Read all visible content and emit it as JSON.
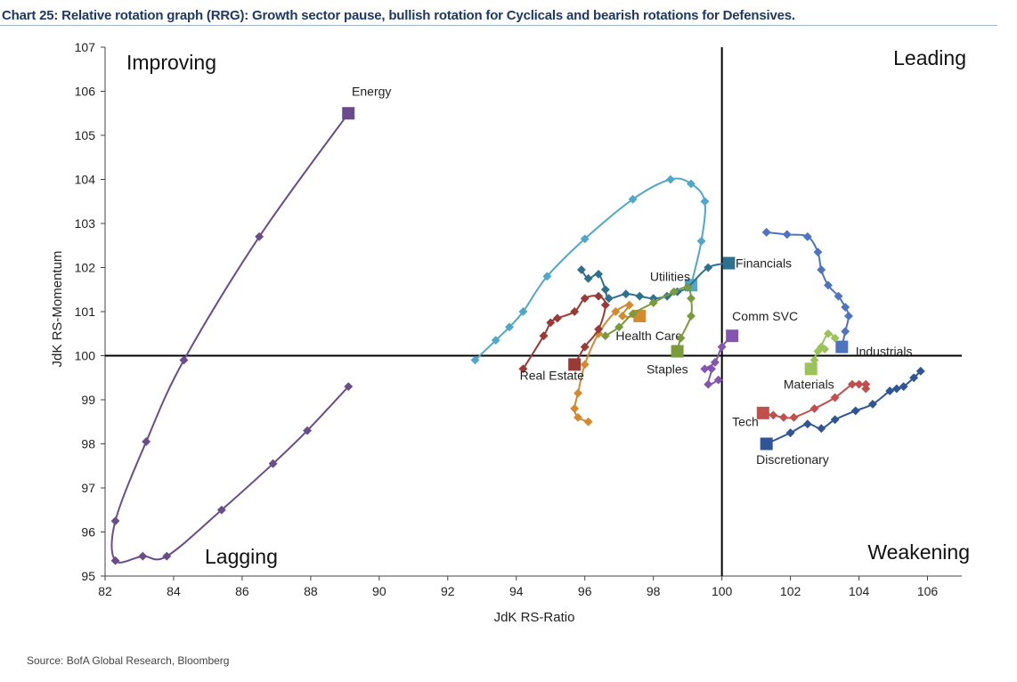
{
  "title": "Chart 25: Relative rotation graph (RRG): Growth sector pause, bullish rotation for Cyclicals and bearish rotations for Defensives.",
  "source": "Source: BofA Global Research, Bloomberg",
  "chart_data": {
    "type": "scatter",
    "xlabel": "JdK RS-Ratio",
    "ylabel": "JdK RS-Momentum",
    "xlim": [
      82,
      107
    ],
    "ylim": [
      95,
      107
    ],
    "x_ticks": [
      82,
      84,
      86,
      88,
      90,
      92,
      94,
      96,
      98,
      100,
      102,
      104,
      106
    ],
    "y_ticks": [
      95,
      96,
      97,
      98,
      99,
      100,
      101,
      102,
      103,
      104,
      105,
      106,
      107
    ],
    "crosshair": {
      "x": 100,
      "y": 100
    },
    "grid": false,
    "quadrants": {
      "top_left": "Improving",
      "top_right": "Leading",
      "bottom_left": "Lagging",
      "bottom_right": "Weakening"
    },
    "series": [
      {
        "name": "Energy",
        "color": "#6b4c8a",
        "label_anchor": [
          89.2,
          105.9
        ],
        "points": [
          [
            89.1,
            99.3
          ],
          [
            87.9,
            98.3
          ],
          [
            86.9,
            97.55
          ],
          [
            85.4,
            96.5
          ],
          [
            83.8,
            95.45
          ],
          [
            83.1,
            95.45
          ],
          [
            82.3,
            95.35
          ],
          [
            82.3,
            96.25
          ],
          [
            83.2,
            98.05
          ],
          [
            84.3,
            99.9
          ],
          [
            86.5,
            102.7
          ],
          [
            89.1,
            105.5
          ]
        ]
      },
      {
        "name": "Utilities",
        "color": "#4fa8c8",
        "label_anchor": [
          97.9,
          101.7
        ],
        "points": [
          [
            92.8,
            99.9
          ],
          [
            93.4,
            100.35
          ],
          [
            93.8,
            100.65
          ],
          [
            94.2,
            101.0
          ],
          [
            94.9,
            101.8
          ],
          [
            96.0,
            102.65
          ],
          [
            97.4,
            103.55
          ],
          [
            98.5,
            104.0
          ],
          [
            99.1,
            103.9
          ],
          [
            99.5,
            103.5
          ],
          [
            99.4,
            102.6
          ],
          [
            99.1,
            101.6
          ]
        ]
      },
      {
        "name": "Financials",
        "color": "#2e7090",
        "label_anchor": [
          100.4,
          102.0
        ],
        "points": [
          [
            95.9,
            101.95
          ],
          [
            96.1,
            101.75
          ],
          [
            96.4,
            101.85
          ],
          [
            96.6,
            101.5
          ],
          [
            96.7,
            101.3
          ],
          [
            97.2,
            101.4
          ],
          [
            97.6,
            101.35
          ],
          [
            98.0,
            101.3
          ],
          [
            98.4,
            101.35
          ],
          [
            98.7,
            101.45
          ],
          [
            99.0,
            101.55
          ],
          [
            99.6,
            102.0
          ],
          [
            100.2,
            102.1
          ]
        ]
      },
      {
        "name": "Comm SVC",
        "color": "#8455b0",
        "label_anchor": [
          100.3,
          100.8
        ],
        "points": [
          [
            99.9,
            99.45
          ],
          [
            99.6,
            99.35
          ],
          [
            99.7,
            99.7
          ],
          [
            99.5,
            99.7
          ],
          [
            99.8,
            99.85
          ],
          [
            100.0,
            100.2
          ],
          [
            100.3,
            100.45
          ]
        ]
      },
      {
        "name": "Health Care",
        "color": "#d4892e",
        "label_anchor": [
          96.9,
          100.35
        ],
        "points": [
          [
            96.1,
            98.5
          ],
          [
            95.8,
            98.6
          ],
          [
            95.7,
            98.8
          ],
          [
            95.8,
            99.15
          ],
          [
            96.0,
            99.8
          ],
          [
            96.4,
            100.5
          ],
          [
            96.9,
            101.0
          ],
          [
            97.3,
            101.15
          ],
          [
            97.1,
            100.9
          ],
          [
            97.6,
            100.9
          ]
        ]
      },
      {
        "name": "Real Estate",
        "color": "#9b3a34",
        "label_anchor": [
          94.1,
          99.45
        ],
        "points": [
          [
            94.2,
            99.7
          ],
          [
            94.8,
            100.45
          ],
          [
            95.0,
            100.75
          ],
          [
            95.2,
            100.85
          ],
          [
            95.7,
            101.0
          ],
          [
            96.0,
            101.3
          ],
          [
            96.4,
            101.35
          ],
          [
            96.6,
            101.15
          ],
          [
            96.4,
            100.6
          ],
          [
            96.0,
            100.2
          ],
          [
            95.7,
            99.8
          ]
        ]
      },
      {
        "name": "Staples",
        "color": "#7a9a3c",
        "label_anchor": [
          97.8,
          99.6
        ],
        "points": [
          [
            96.6,
            100.45
          ],
          [
            97.0,
            100.65
          ],
          [
            97.4,
            100.95
          ],
          [
            98.0,
            101.2
          ],
          [
            98.6,
            101.45
          ],
          [
            99.0,
            101.55
          ],
          [
            99.1,
            101.3
          ],
          [
            99.1,
            100.9
          ],
          [
            98.8,
            100.4
          ],
          [
            98.7,
            100.1
          ]
        ]
      },
      {
        "name": "Industrials",
        "color": "#4d74c0",
        "label_anchor": [
          103.9,
          100.0
        ],
        "points": [
          [
            101.3,
            102.8
          ],
          [
            101.9,
            102.75
          ],
          [
            102.5,
            102.7
          ],
          [
            102.8,
            102.35
          ],
          [
            102.9,
            101.95
          ],
          [
            103.1,
            101.6
          ],
          [
            103.4,
            101.35
          ],
          [
            103.6,
            101.1
          ],
          [
            103.7,
            100.9
          ],
          [
            103.6,
            100.55
          ],
          [
            103.5,
            100.2
          ]
        ]
      },
      {
        "name": "Materials",
        "color": "#9cc25a",
        "label_anchor": [
          101.8,
          99.25
        ],
        "points": [
          [
            103.3,
            100.4
          ],
          [
            103.1,
            100.5
          ],
          [
            102.9,
            100.2
          ],
          [
            103.0,
            100.15
          ],
          [
            102.8,
            100.1
          ],
          [
            102.7,
            99.9
          ],
          [
            102.6,
            99.7
          ]
        ]
      },
      {
        "name": "Tech",
        "color": "#c0504d",
        "label_anchor": [
          100.3,
          98.4
        ],
        "points": [
          [
            104.2,
            99.25
          ],
          [
            104.2,
            99.35
          ],
          [
            104.0,
            99.35
          ],
          [
            103.8,
            99.35
          ],
          [
            103.3,
            99.05
          ],
          [
            102.7,
            98.8
          ],
          [
            102.1,
            98.6
          ],
          [
            101.8,
            98.6
          ],
          [
            101.5,
            98.65
          ],
          [
            101.2,
            98.7
          ]
        ]
      },
      {
        "name": "Discretionary",
        "color": "#2f5597",
        "label_anchor": [
          101.0,
          97.55
        ],
        "points": [
          [
            105.8,
            99.65
          ],
          [
            105.6,
            99.5
          ],
          [
            105.3,
            99.3
          ],
          [
            105.1,
            99.25
          ],
          [
            104.9,
            99.2
          ],
          [
            104.4,
            98.9
          ],
          [
            103.9,
            98.75
          ],
          [
            103.3,
            98.55
          ],
          [
            102.9,
            98.35
          ],
          [
            102.5,
            98.45
          ],
          [
            102.0,
            98.25
          ],
          [
            101.3,
            98.0
          ]
        ]
      }
    ]
  }
}
